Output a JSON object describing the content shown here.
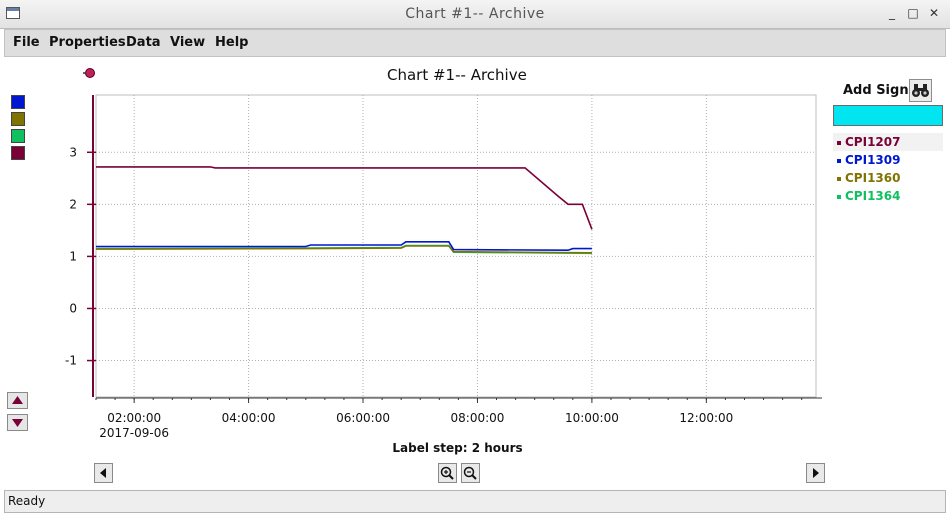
{
  "window": {
    "title": "Chart #1-- Archive"
  },
  "menu": [
    {
      "label": "File"
    },
    {
      "label": "Properties"
    },
    {
      "label": "Data"
    },
    {
      "label": "View"
    },
    {
      "label": "Help"
    }
  ],
  "chart": {
    "title": "Chart #1-- Archive",
    "label_step": "Label step: 2 hours"
  },
  "signals_panel": {
    "add_signal_label": "Add Signal",
    "input_value": "",
    "input_color": "#00e5f0",
    "signals": [
      {
        "name": "CPI1207",
        "color": "#7a0038"
      },
      {
        "name": "CPI1309",
        "color": "#0016d0"
      },
      {
        "name": "CPI1360",
        "color": "#7f7400"
      },
      {
        "name": "CPI1364",
        "color": "#10c060"
      }
    ]
  },
  "axis_swatches": [
    "#0016d0",
    "#7f7400",
    "#10c060",
    "#7a0038"
  ],
  "status": {
    "text": "Ready"
  },
  "icons": {
    "title_buttons": [
      "minimize-icon",
      "maximize-icon",
      "close-icon"
    ],
    "binoculars": "binoculars-icon",
    "zoom_in": "zoom-in-icon",
    "zoom_out": "zoom-out-icon"
  },
  "chart_data": {
    "type": "line",
    "x_unit": "time",
    "xlim": [
      "2017-09-06 01:20",
      "2017-09-06 13:55"
    ],
    "ylim": [
      -1.7,
      4.1
    ],
    "y_ticks": [
      -1,
      0,
      1,
      2,
      3
    ],
    "y_tick_labels": [
      "-1",
      "0",
      "1",
      "2",
      "3"
    ],
    "x_ticks": [
      "02:00:00",
      "04:00:00",
      "06:00:00",
      "08:00:00",
      "10:00:00",
      "12:00:00"
    ],
    "x_date_label": "2017-09-06",
    "grid": true,
    "series": [
      {
        "name": "CPI1207",
        "color": "#7a0038",
        "x": [
          "01:20",
          "03:20",
          "03:25",
          "08:50",
          "09:25",
          "09:35",
          "09:50",
          "10:00"
        ],
        "y": [
          2.72,
          2.72,
          2.7,
          2.7,
          2.15,
          2.0,
          2.0,
          1.52
        ]
      },
      {
        "name": "CPI1309",
        "color": "#0016d0",
        "x": [
          "01:20",
          "05:00",
          "05:05",
          "06:40",
          "06:45",
          "07:30",
          "07:35",
          "09:35",
          "09:40",
          "10:00"
        ],
        "y": [
          1.19,
          1.19,
          1.22,
          1.22,
          1.28,
          1.28,
          1.13,
          1.12,
          1.15,
          1.15
        ]
      },
      {
        "name": "CPI1360",
        "color": "#7f7400",
        "x": [
          "01:20",
          "05:00",
          "06:40",
          "06:45",
          "07:30",
          "07:35",
          "10:00"
        ],
        "y": [
          1.14,
          1.15,
          1.16,
          1.2,
          1.2,
          1.09,
          1.07
        ]
      },
      {
        "name": "CPI1364",
        "color": "#10c060",
        "x": [
          "01:20",
          "05:00",
          "06:40",
          "06:45",
          "07:30",
          "07:35",
          "10:00"
        ],
        "y": [
          1.15,
          1.16,
          1.17,
          1.21,
          1.21,
          1.08,
          1.06
        ]
      }
    ]
  }
}
